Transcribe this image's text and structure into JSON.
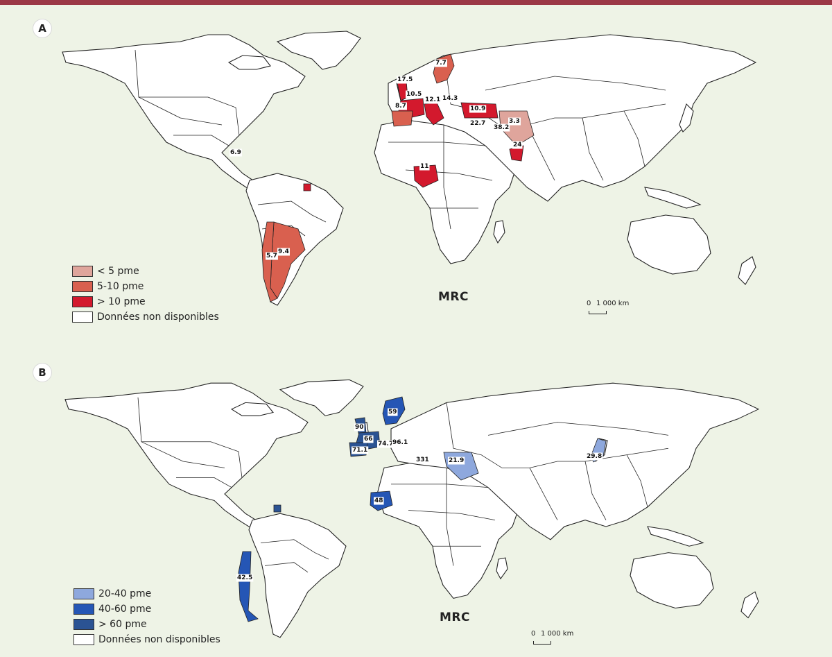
{
  "panel_a": {
    "label": "A",
    "caption": "MRC",
    "scale": {
      "zero": "0",
      "distance": "1 000 km"
    },
    "legend": [
      {
        "label": "< 5 pme",
        "color": "#dfa59c"
      },
      {
        "label": "5-10 pme",
        "color": "#d9604f"
      },
      {
        "label": "> 10 pme",
        "color": "#d3192d"
      },
      {
        "label": "Données non disponibles",
        "color": "#ffffff"
      }
    ],
    "values": [
      "17.5",
      "7.7",
      "10.5",
      "14.3",
      "12.1",
      "8.7",
      "10.9",
      "22.7",
      "38.2",
      "3.3",
      "24",
      "11",
      "6.9",
      "9.4",
      "5.7"
    ]
  },
  "panel_b": {
    "label": "B",
    "caption": "MRC",
    "scale": {
      "zero": "0",
      "distance": "1 000 km"
    },
    "legend": [
      {
        "label": "20-40 pme",
        "color": "#8ea8dd"
      },
      {
        "label": "40-60 pme",
        "color": "#2556b5"
      },
      {
        "label": "> 60 pme",
        "color": "#2b5393"
      },
      {
        "label": "Données non disponibles",
        "color": "#ffffff"
      }
    ],
    "values": [
      "90",
      "59",
      "66",
      "74.7",
      "96.1",
      "71.1",
      "331",
      "21.9",
      "29.8",
      "48",
      "42.5"
    ]
  },
  "colors": {
    "frame": "#9b3846",
    "background": "#eef3e6"
  }
}
